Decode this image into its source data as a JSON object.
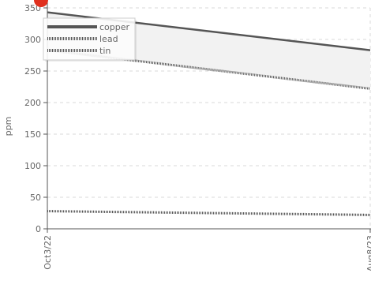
{
  "chart_data": {
    "type": "line",
    "title": "",
    "xlabel": "",
    "ylabel": "ppm",
    "x": [
      "Oct3/22",
      "Aug8/23"
    ],
    "xtick_labels": [
      "Oct3/22",
      "Aug8/23"
    ],
    "ylim": [
      0,
      350
    ],
    "yticks": [
      0,
      50,
      100,
      150,
      200,
      250,
      300,
      350
    ],
    "grid": true,
    "legend_position": "top-left",
    "series": [
      {
        "name": "copper",
        "values": [
          343,
          283
        ],
        "color": "#555555",
        "style": "solid"
      },
      {
        "name": "lead",
        "values": [
          283,
          222
        ],
        "color": "#555555",
        "style": "dotted"
      },
      {
        "name": "tin",
        "values": [
          28,
          22
        ],
        "color": "#555555",
        "style": "dotted"
      }
    ],
    "band_fill_color": "#f2f2f2",
    "marker_color": "#e0301e"
  }
}
